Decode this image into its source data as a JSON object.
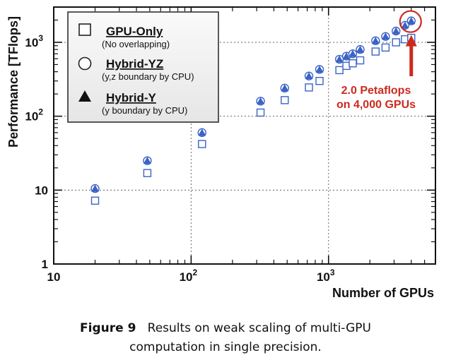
{
  "chart_data": {
    "type": "scatter",
    "xlabel": "Number of GPUs",
    "ylabel": "Performance [TFlops]",
    "xscale": "log",
    "yscale": "log",
    "xlim": [
      10,
      6000
    ],
    "ylim": [
      1,
      3000
    ],
    "x_ticks": [
      {
        "value": 10,
        "base": "10",
        "exp": ""
      },
      {
        "value": 100,
        "base": "10",
        "exp": "2"
      },
      {
        "value": 1000,
        "base": "10",
        "exp": "3"
      }
    ],
    "y_ticks": [
      {
        "value": 1,
        "base": "1",
        "exp": ""
      },
      {
        "value": 10,
        "base": "10",
        "exp": ""
      },
      {
        "value": 100,
        "base": "10",
        "exp": "2"
      },
      {
        "value": 1000,
        "base": "10",
        "exp": "3"
      }
    ],
    "grid": true,
    "legend_position": "top-left",
    "series": [
      {
        "name": "GPU-Only",
        "note": "(No overlapping)",
        "marker": "open-square",
        "color": "#3a63c4",
        "x": [
          20,
          48,
          120,
          320,
          480,
          720,
          860,
          1200,
          1350,
          1500,
          1700,
          2200,
          2600,
          3100,
          3600,
          4000
        ],
        "y": [
          7.2,
          17,
          42,
          112,
          165,
          245,
          300,
          420,
          480,
          520,
          570,
          750,
          850,
          1000,
          1100,
          1150
        ]
      },
      {
        "name": "Hybrid-YZ",
        "note": "(y,z boundary by CPU)",
        "marker": "open-circle",
        "color": "#3a63c4",
        "x": [
          20,
          48,
          120,
          320,
          480,
          720,
          860,
          1200,
          1350,
          1500,
          1700,
          2200,
          2600,
          3100,
          3600,
          4000
        ],
        "y": [
          10.5,
          25,
          60,
          160,
          240,
          350,
          430,
          590,
          650,
          700,
          800,
          1050,
          1200,
          1420,
          1700,
          1950
        ]
      },
      {
        "name": "Hybrid-Y",
        "note": "(y boundary by CPU)",
        "marker": "filled-triangle",
        "color": "#3a63c4",
        "x": [
          20,
          48,
          120,
          320,
          480,
          720,
          860,
          1200,
          1350,
          1500,
          1700,
          2200,
          2600,
          3100,
          3600,
          4000
        ],
        "y": [
          10.5,
          25,
          60,
          160,
          240,
          350,
          430,
          590,
          650,
          700,
          800,
          1050,
          1200,
          1420,
          1700,
          1950
        ]
      }
    ],
    "annotation": {
      "lines": [
        "2.0 Petaflops",
        "on 4,000 GPUs"
      ],
      "color": "#cc2a1e",
      "target_x": 4000,
      "target_y": 1950
    }
  },
  "caption": {
    "label": "Figure 9",
    "line1": "Results on weak scaling of multi-GPU",
    "line2": "computation in single precision."
  }
}
